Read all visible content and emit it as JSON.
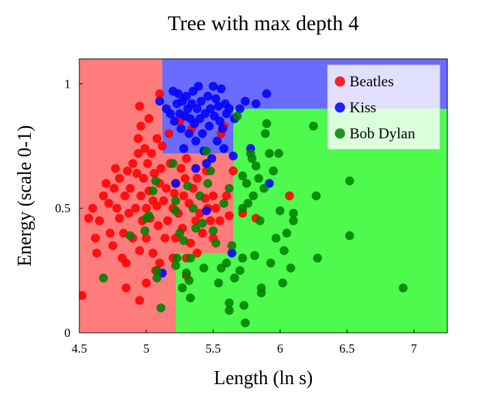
{
  "chart_data": {
    "type": "scatter",
    "title": "Tree with max depth 4",
    "xlabel": "Length (ln s)",
    "ylabel": "Energy (scale 0-1)",
    "xlim": [
      4.5,
      7.25
    ],
    "ylim": [
      0,
      1.1
    ],
    "xticks": [
      {
        "value": 4.5,
        "label": "4.5"
      },
      {
        "value": 5,
        "label": "5"
      },
      {
        "value": 5.5,
        "label": "5.5"
      },
      {
        "value": 6,
        "label": "6"
      },
      {
        "value": 6.5,
        "label": "6.5"
      },
      {
        "value": 7,
        "label": "7"
      }
    ],
    "yticks": [
      {
        "value": 0,
        "label": "0"
      },
      {
        "value": 0.5,
        "label": "0.5"
      },
      {
        "value": 1,
        "label": "1"
      }
    ],
    "grid": false,
    "legend_position": "top-right",
    "regions": [
      {
        "class": "Bob Dylan",
        "color": "#4dfa4d",
        "x": [
          4.5,
          7.25
        ],
        "y": [
          0,
          1.1
        ]
      },
      {
        "class": "Kiss",
        "color": "#6b6bff",
        "x": [
          5.12,
          7.25
        ],
        "y": [
          0.9,
          1.1
        ]
      },
      {
        "class": "Kiss",
        "color": "#6b6bff",
        "x": [
          5.12,
          5.65
        ],
        "y": [
          0.72,
          1.1
        ]
      },
      {
        "class": "Beatles",
        "color": "#ff7c7c",
        "x": [
          4.5,
          5.12
        ],
        "y": [
          0,
          1.1
        ]
      },
      {
        "class": "Beatles",
        "color": "#ff7c7c",
        "x": [
          5.12,
          5.22
        ],
        "y": [
          0,
          0.72
        ]
      },
      {
        "class": "Beatles",
        "color": "#ff7c7c",
        "x": [
          5.22,
          5.65
        ],
        "y": [
          0.32,
          0.72
        ]
      }
    ],
    "series": [
      {
        "name": "Beatles",
        "color": "#ff0000",
        "points": [
          [
            4.52,
            0.15
          ],
          [
            4.57,
            0.46
          ],
          [
            4.6,
            0.5
          ],
          [
            4.62,
            0.38
          ],
          [
            4.63,
            0.32
          ],
          [
            4.65,
            0.45
          ],
          [
            4.68,
            0.55
          ],
          [
            4.7,
            0.6
          ],
          [
            4.72,
            0.52
          ],
          [
            4.73,
            0.4
          ],
          [
            4.75,
            0.35
          ],
          [
            4.76,
            0.58
          ],
          [
            4.77,
            0.66
          ],
          [
            4.78,
            0.5
          ],
          [
            4.8,
            0.62
          ],
          [
            4.8,
            0.46
          ],
          [
            4.82,
            0.3
          ],
          [
            4.83,
            0.4
          ],
          [
            4.84,
            0.55
          ],
          [
            4.85,
            0.18
          ],
          [
            4.85,
            0.28
          ],
          [
            4.86,
            0.65
          ],
          [
            4.87,
            0.48
          ],
          [
            4.88,
            0.58
          ],
          [
            4.9,
            0.38
          ],
          [
            4.9,
            0.68
          ],
          [
            4.92,
            0.5
          ],
          [
            4.93,
            0.64
          ],
          [
            4.94,
            0.72
          ],
          [
            4.94,
            0.78
          ],
          [
            4.95,
            0.13
          ],
          [
            4.95,
            0.33
          ],
          [
            4.95,
            0.91
          ],
          [
            4.96,
            0.55
          ],
          [
            4.96,
            0.83
          ],
          [
            4.97,
            0.45
          ],
          [
            4.98,
            0.62
          ],
          [
            4.99,
            0.74
          ],
          [
            5.0,
            0.5
          ],
          [
            5.0,
            0.38
          ],
          [
            5.0,
            0.2
          ],
          [
            5.01,
            0.68
          ],
          [
            5.02,
            0.57
          ],
          [
            5.02,
            0.86
          ],
          [
            5.03,
            0.46
          ],
          [
            5.04,
            0.72
          ],
          [
            5.05,
            0.53
          ],
          [
            5.05,
            0.32
          ],
          [
            5.06,
            0.64
          ],
          [
            5.07,
            0.25
          ],
          [
            5.08,
            0.78
          ],
          [
            5.08,
            0.51
          ],
          [
            5.09,
            0.43
          ],
          [
            5.1,
            0.6
          ],
          [
            5.1,
            0.96
          ],
          [
            5.1,
            0.28
          ],
          [
            5.11,
            0.66
          ],
          [
            5.12,
            0.75
          ],
          [
            5.13,
            0.53
          ],
          [
            5.14,
            0.38
          ],
          [
            5.15,
            0.58
          ],
          [
            5.16,
            0.45
          ],
          [
            5.17,
            0.8
          ],
          [
            5.18,
            0.68
          ],
          [
            5.2,
            0.5
          ],
          [
            5.2,
            0.3
          ],
          [
            5.21,
            0.56
          ],
          [
            5.22,
            0.38
          ],
          [
            5.22,
            0.6
          ],
          [
            5.24,
            0.48
          ],
          [
            5.25,
            0.85
          ],
          [
            5.26,
            0.66
          ],
          [
            5.27,
            0.42
          ],
          [
            5.28,
            0.55
          ],
          [
            5.29,
            0.62
          ],
          [
            5.3,
            0.3
          ],
          [
            5.3,
            0.23
          ],
          [
            5.3,
            0.7
          ],
          [
            5.32,
            0.52
          ],
          [
            5.33,
            0.36
          ],
          [
            5.34,
            0.82
          ],
          [
            5.35,
            0.58
          ],
          [
            5.37,
            0.45
          ],
          [
            5.38,
            0.32
          ],
          [
            5.38,
            0.62
          ],
          [
            5.4,
            0.48
          ],
          [
            5.42,
            0.4
          ],
          [
            5.44,
            0.54
          ],
          [
            5.45,
            0.65
          ],
          [
            5.46,
            0.5
          ],
          [
            5.48,
            0.45
          ],
          [
            5.5,
            0.38
          ],
          [
            5.5,
            0.55
          ],
          [
            5.52,
            0.5
          ],
          [
            5.55,
            0.45
          ],
          [
            5.56,
            0.8
          ],
          [
            5.58,
            0.83
          ],
          [
            5.6,
            0.55
          ],
          [
            5.62,
            0.47
          ],
          [
            5.65,
            0.65
          ],
          [
            5.72,
            0.48
          ],
          [
            5.82,
            0.46
          ],
          [
            6.07,
            0.55
          ]
        ]
      },
      {
        "name": "Kiss",
        "color": "#0000ff",
        "points": [
          [
            5.12,
            0.24
          ],
          [
            5.1,
            0.93
          ],
          [
            5.15,
            0.9
          ],
          [
            5.18,
            0.88
          ],
          [
            5.2,
            0.97
          ],
          [
            5.21,
            0.85
          ],
          [
            5.22,
            0.6
          ],
          [
            5.23,
            0.92
          ],
          [
            5.24,
            0.96
          ],
          [
            5.25,
            0.88
          ],
          [
            5.26,
            0.82
          ],
          [
            5.27,
            0.93
          ],
          [
            5.28,
            0.74
          ],
          [
            5.29,
            0.87
          ],
          [
            5.3,
            0.95
          ],
          [
            5.31,
            0.9
          ],
          [
            5.32,
            0.8
          ],
          [
            5.33,
            0.86
          ],
          [
            5.34,
            0.92
          ],
          [
            5.35,
            0.97
          ],
          [
            5.36,
            0.84
          ],
          [
            5.37,
            0.77
          ],
          [
            5.37,
            0.66
          ],
          [
            5.38,
            0.9
          ],
          [
            5.39,
            0.99
          ],
          [
            5.4,
            0.86
          ],
          [
            5.41,
            0.93
          ],
          [
            5.42,
            0.8
          ],
          [
            5.43,
            0.73
          ],
          [
            5.44,
            0.88
          ],
          [
            5.45,
            0.49
          ],
          [
            5.45,
            0.68
          ],
          [
            5.46,
            0.95
          ],
          [
            5.47,
            0.83
          ],
          [
            5.48,
            0.9
          ],
          [
            5.49,
            0.7
          ],
          [
            5.5,
            0.99
          ],
          [
            5.51,
            0.87
          ],
          [
            5.52,
            0.94
          ],
          [
            5.53,
            0.77
          ],
          [
            5.54,
            0.91
          ],
          [
            5.55,
            0.85
          ],
          [
            5.56,
            0.98
          ],
          [
            5.57,
            0.82
          ],
          [
            5.58,
            0.74
          ],
          [
            5.59,
            0.92
          ],
          [
            5.6,
            0.88
          ],
          [
            5.62,
            0.9
          ],
          [
            5.64,
            0.32
          ],
          [
            5.65,
            0.71
          ],
          [
            5.66,
            0.86
          ],
          [
            5.7,
            0.9
          ],
          [
            5.74,
            0.93
          ],
          [
            5.78,
            0.74
          ],
          [
            5.82,
            0.92
          ],
          [
            5.9,
            0.96
          ],
          [
            5.92,
            0.6
          ]
        ]
      },
      {
        "name": "Bob Dylan",
        "color": "#008000",
        "points": [
          [
            4.68,
            0.22
          ],
          [
            4.88,
            0.39
          ],
          [
            4.99,
            0.41
          ],
          [
            5.0,
            0.46
          ],
          [
            5.02,
            0.47
          ],
          [
            5.05,
            0.57
          ],
          [
            5.07,
            0.61
          ],
          [
            5.08,
            0.25
          ],
          [
            5.08,
            0.22
          ],
          [
            5.11,
            0.1
          ],
          [
            5.2,
            0.68
          ],
          [
            5.22,
            0.53
          ],
          [
            5.22,
            0.49
          ],
          [
            5.22,
            0.27
          ],
          [
            5.23,
            0.3
          ],
          [
            5.25,
            0.4
          ],
          [
            5.27,
            0.18
          ],
          [
            5.28,
            0.37
          ],
          [
            5.3,
            0.24
          ],
          [
            5.31,
            0.59
          ],
          [
            5.32,
            0.21
          ],
          [
            5.33,
            0.14
          ],
          [
            5.33,
            0.3
          ],
          [
            5.35,
            0.5
          ],
          [
            5.37,
            0.42
          ],
          [
            5.4,
            0.55
          ],
          [
            5.42,
            0.44
          ],
          [
            5.43,
            0.26
          ],
          [
            5.45,
            0.73
          ],
          [
            5.46,
            0.6
          ],
          [
            5.48,
            0.65
          ],
          [
            5.5,
            0.41
          ],
          [
            5.52,
            0.36
          ],
          [
            5.54,
            0.2
          ],
          [
            5.56,
            0.26
          ],
          [
            5.58,
            0.52
          ],
          [
            5.6,
            0.28
          ],
          [
            5.62,
            0.58
          ],
          [
            5.62,
            0.12
          ],
          [
            5.62,
            0.09
          ],
          [
            5.64,
            0.35
          ],
          [
            5.66,
            0.22
          ],
          [
            5.68,
            0.87
          ],
          [
            5.7,
            0.25
          ],
          [
            5.72,
            0.3
          ],
          [
            5.72,
            0.5
          ],
          [
            5.72,
            0.63
          ],
          [
            5.73,
            0.11
          ],
          [
            5.74,
            0.04
          ],
          [
            5.75,
            0.6
          ],
          [
            5.76,
            0.52
          ],
          [
            5.78,
            0.72
          ],
          [
            5.79,
            0.7
          ],
          [
            5.8,
            0.55
          ],
          [
            5.81,
            0.31
          ],
          [
            5.82,
            0.67
          ],
          [
            5.84,
            0.62
          ],
          [
            5.85,
            0.45
          ],
          [
            5.86,
            0.18
          ],
          [
            5.86,
            0.16
          ],
          [
            5.88,
            0.58
          ],
          [
            5.89,
            0.8
          ],
          [
            5.9,
            0.84
          ],
          [
            5.92,
            0.72
          ],
          [
            5.93,
            0.28
          ],
          [
            5.95,
            0.65
          ],
          [
            5.97,
            0.38
          ],
          [
            5.99,
            0.72
          ],
          [
            6.0,
            0.49
          ],
          [
            6.02,
            0.2
          ],
          [
            6.03,
            0.33
          ],
          [
            6.05,
            0.4
          ],
          [
            6.08,
            0.26
          ],
          [
            6.1,
            0.45
          ],
          [
            6.1,
            0.48
          ],
          [
            6.25,
            0.83
          ],
          [
            6.27,
            0.55
          ],
          [
            6.28,
            0.3
          ],
          [
            6.52,
            0.61
          ],
          [
            6.52,
            0.39
          ],
          [
            6.92,
            0.18
          ]
        ]
      }
    ]
  }
}
